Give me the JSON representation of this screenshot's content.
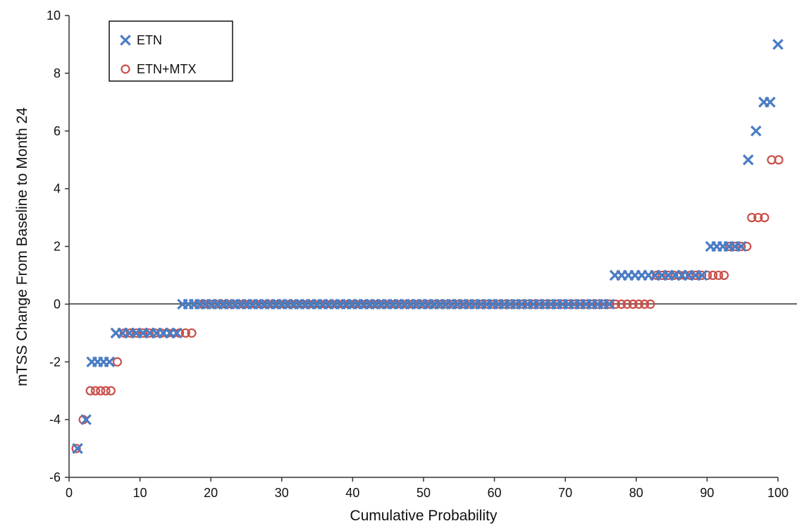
{
  "chart_data": {
    "type": "scatter",
    "xlabel": "Cumulative Probability",
    "ylabel": "mTSS Change From Baseline to Month 24",
    "xlim": [
      0,
      100
    ],
    "ylim": [
      -6,
      10
    ],
    "xticks": [
      "0",
      "10",
      "20",
      "30",
      "40",
      "50",
      "60",
      "70",
      "80",
      "90",
      "100"
    ],
    "yticks": [
      "-6",
      "-4",
      "-2",
      "0",
      "2",
      "4",
      "6",
      "8",
      "10"
    ],
    "grid": false,
    "zero_line": true,
    "legend_position": "top-left",
    "series": [
      {
        "name": "ETN",
        "marker": "x",
        "color": "#4a7dc4",
        "groups": [
          {
            "y": -5,
            "x_start": 1.2,
            "x_end": 1.2,
            "n": 1
          },
          {
            "y": -4,
            "x_start": 2.4,
            "x_end": 2.4,
            "n": 1
          },
          {
            "y": -2,
            "x_start": 3.2,
            "x_end": 5.7,
            "n": 4
          },
          {
            "y": -1,
            "x_start": 6.6,
            "x_end": 15.2,
            "n": 10
          },
          {
            "y": 0,
            "x_start": 16.0,
            "x_end": 76.2,
            "n": 74
          },
          {
            "y": 1,
            "x_start": 77.0,
            "x_end": 89.3,
            "n": 14
          },
          {
            "y": 2,
            "x_start": 90.5,
            "x_end": 94.8,
            "n": 6
          },
          {
            "y": 5,
            "x_start": 95.8,
            "x_end": 95.8,
            "n": 1
          },
          {
            "y": 6,
            "x_start": 96.9,
            "x_end": 96.9,
            "n": 1
          },
          {
            "y": 7,
            "x_start": 98.0,
            "x_end": 98.9,
            "n": 2
          },
          {
            "y": 9,
            "x_start": 100.0,
            "x_end": 100.0,
            "n": 1
          }
        ]
      },
      {
        "name": "ETN+MTX",
        "marker": "o",
        "color": "#c9504a",
        "groups": [
          {
            "y": -5,
            "x_start": 1.0,
            "x_end": 1.0,
            "n": 1
          },
          {
            "y": -4,
            "x_start": 2.0,
            "x_end": 2.0,
            "n": 1
          },
          {
            "y": -3,
            "x_start": 3.0,
            "x_end": 5.9,
            "n": 5
          },
          {
            "y": -2,
            "x_start": 6.8,
            "x_end": 6.8,
            "n": 1
          },
          {
            "y": -1,
            "x_start": 7.8,
            "x_end": 17.3,
            "n": 12
          },
          {
            "y": 0,
            "x_start": 18.2,
            "x_end": 82.0,
            "n": 79
          },
          {
            "y": 1,
            "x_start": 82.9,
            "x_end": 92.4,
            "n": 13
          },
          {
            "y": 2,
            "x_start": 93.2,
            "x_end": 95.6,
            "n": 4
          },
          {
            "y": 3,
            "x_start": 96.3,
            "x_end": 98.1,
            "n": 3
          },
          {
            "y": 5,
            "x_start": 99.1,
            "x_end": 100.1,
            "n": 2
          }
        ]
      }
    ]
  }
}
